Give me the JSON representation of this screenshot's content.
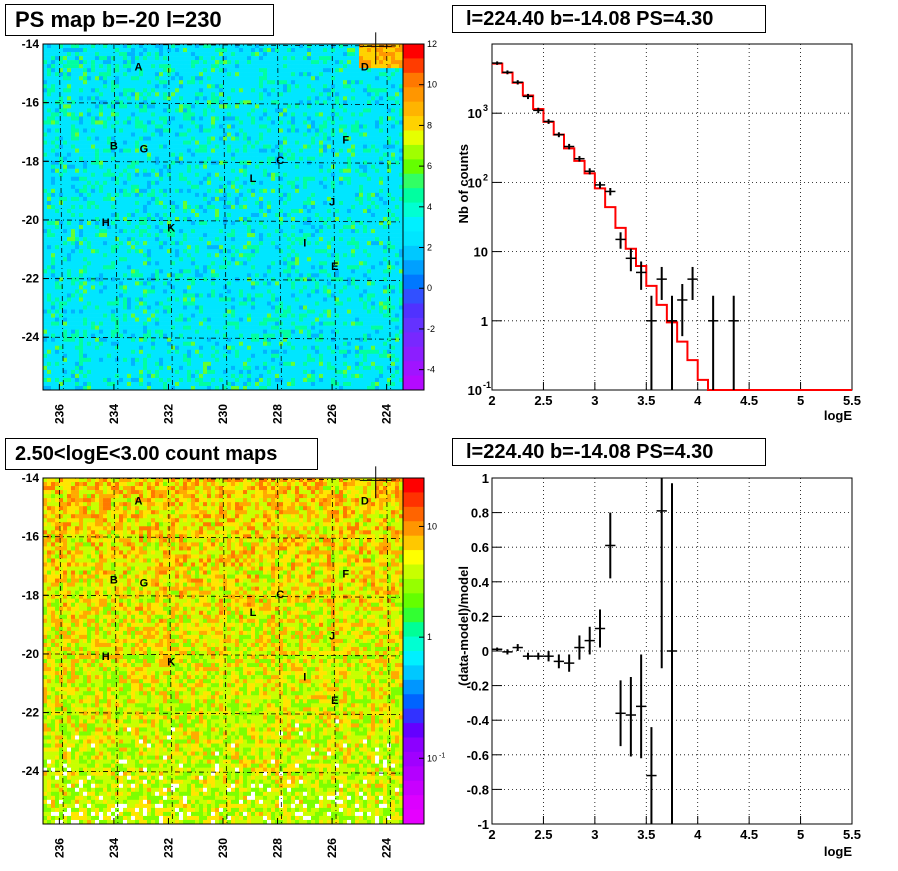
{
  "chart_data": [
    {
      "type": "heatmap",
      "title": "PS map b=-20 l=230",
      "xlabel": "",
      "ylabel": "",
      "x_ticks": [
        "236",
        "234",
        "232",
        "230",
        "228",
        "226",
        "224"
      ],
      "y_ticks": [
        "-14",
        "-16",
        "-18",
        "-20",
        "-22",
        "-24"
      ],
      "xlim": [
        236.6,
        223.4
      ],
      "ylim": [
        -25.8,
        -14
      ],
      "colorbar_ticks": [
        "12",
        "10",
        "8",
        "6",
        "4",
        "2",
        "0",
        "-2",
        "-4"
      ],
      "colorbar_range": [
        -5,
        12
      ],
      "colorbar_scale": "linear",
      "grid": true,
      "sources": [
        {
          "label": "A",
          "l": 233.1,
          "b": -14.9
        },
        {
          "label": "B",
          "l": 234.0,
          "b": -17.6
        },
        {
          "label": "G",
          "l": 232.9,
          "b": -17.7
        },
        {
          "label": "D",
          "l": 224.8,
          "b": -14.9
        },
        {
          "label": "F",
          "l": 225.5,
          "b": -17.4
        },
        {
          "label": "C",
          "l": 227.9,
          "b": -18.1
        },
        {
          "label": "L",
          "l": 228.9,
          "b": -18.7
        },
        {
          "label": "J",
          "l": 226.0,
          "b": -19.5
        },
        {
          "label": "H",
          "l": 234.3,
          "b": -20.2
        },
        {
          "label": "K",
          "l": 231.9,
          "b": -20.4
        },
        {
          "label": "I",
          "l": 227.0,
          "b": -20.9
        },
        {
          "label": "E",
          "l": 225.9,
          "b": -21.7
        }
      ],
      "marker": {
        "l": 224.4,
        "b": -14.08
      }
    },
    {
      "type": "line",
      "title": "l=224.40 b=-14.08 PS=4.30",
      "xlabel": "logE",
      "ylabel": "Nb of counts",
      "yscale": "log",
      "xlim": [
        2,
        5.5
      ],
      "ylim": [
        0.1,
        10000
      ],
      "x_ticks": [
        "2",
        "2.5",
        "3",
        "3.5",
        "4",
        "4.5",
        "5",
        "5.5"
      ],
      "y_ticks": [
        "10",
        "1",
        "10"
      ],
      "y_tick_exponents": [
        "-1",
        "",
        ""
      ],
      "y_ticks_pow": [
        {
          "base": "10",
          "exp": "-1"
        },
        {
          "base": "1",
          "exp": ""
        },
        {
          "base": "10",
          "exp": ""
        },
        {
          "base": "10",
          "exp": "2"
        },
        {
          "base": "10",
          "exp": "3"
        }
      ],
      "grid": true,
      "data_points": [
        {
          "x": 2.05,
          "y": 5300,
          "xerr": 0.05,
          "ylo": 5000,
          "yhi": 5600
        },
        {
          "x": 2.15,
          "y": 3900,
          "xerr": 0.05,
          "ylo": 3650,
          "yhi": 4150
        },
        {
          "x": 2.25,
          "y": 2800,
          "xerr": 0.05,
          "ylo": 2600,
          "yhi": 3000
        },
        {
          "x": 2.35,
          "y": 1750,
          "xerr": 0.05,
          "ylo": 1600,
          "yhi": 1900
        },
        {
          "x": 2.45,
          "y": 1100,
          "xerr": 0.05,
          "ylo": 1000,
          "yhi": 1200
        },
        {
          "x": 2.55,
          "y": 760,
          "xerr": 0.05,
          "ylo": 700,
          "yhi": 820
        },
        {
          "x": 2.65,
          "y": 490,
          "xerr": 0.05,
          "ylo": 450,
          "yhi": 530
        },
        {
          "x": 2.75,
          "y": 330,
          "xerr": 0.05,
          "ylo": 300,
          "yhi": 360
        },
        {
          "x": 2.85,
          "y": 220,
          "xerr": 0.05,
          "ylo": 200,
          "yhi": 240
        },
        {
          "x": 2.95,
          "y": 145,
          "xerr": 0.05,
          "ylo": 130,
          "yhi": 160
        },
        {
          "x": 3.05,
          "y": 92,
          "xerr": 0.05,
          "ylo": 82,
          "yhi": 102
        },
        {
          "x": 3.15,
          "y": 74,
          "xerr": 0.05,
          "ylo": 65,
          "yhi": 83
        },
        {
          "x": 3.25,
          "y": 15,
          "xerr": 0.05,
          "ylo": 11,
          "yhi": 19
        },
        {
          "x": 3.35,
          "y": 8,
          "xerr": 0.05,
          "ylo": 5.2,
          "yhi": 11
        },
        {
          "x": 3.45,
          "y": 5,
          "xerr": 0.05,
          "ylo": 2.8,
          "yhi": 7.2
        },
        {
          "x": 3.55,
          "y": 1,
          "xerr": 0.05,
          "ylo": 0.1,
          "yhi": 2.3
        },
        {
          "x": 3.65,
          "y": 4,
          "xerr": 0.05,
          "ylo": 2.0,
          "yhi": 6.0
        },
        {
          "x": 3.75,
          "y": 1,
          "xerr": 0.05,
          "ylo": 0.1,
          "yhi": 2.3
        },
        {
          "x": 3.85,
          "y": 2,
          "xerr": 0.05,
          "ylo": 0.6,
          "yhi": 3.4
        },
        {
          "x": 3.95,
          "y": 4,
          "xerr": 0.05,
          "ylo": 2.0,
          "yhi": 6.0
        },
        {
          "x": 4.15,
          "y": 1,
          "xerr": 0.05,
          "ylo": 0.1,
          "yhi": 2.3
        },
        {
          "x": 4.35,
          "y": 1,
          "xerr": 0.05,
          "ylo": 0.1,
          "yhi": 2.3
        }
      ],
      "model_step": {
        "edges": [
          2.0,
          2.1,
          2.2,
          2.3,
          2.4,
          2.5,
          2.6,
          2.7,
          2.8,
          2.9,
          3.0,
          3.1,
          3.2,
          3.3,
          3.4,
          3.5,
          3.6,
          3.7,
          3.8,
          3.9,
          4.0,
          4.1,
          5.5
        ],
        "values": [
          5200,
          3850,
          2750,
          1800,
          1150,
          750,
          490,
          310,
          205,
          135,
          82,
          44,
          22,
          11,
          6.2,
          3.2,
          1.7,
          0.95,
          0.5,
          0.27,
          0.14,
          0.1
        ]
      },
      "colors": {
        "data": "#000000",
        "model": "#ff0000"
      }
    },
    {
      "type": "heatmap",
      "title": "2.50<logE<3.00 count maps",
      "xlabel": "",
      "ylabel": "",
      "x_ticks": [
        "236",
        "234",
        "232",
        "230",
        "228",
        "226",
        "224"
      ],
      "y_ticks": [
        "-14",
        "-16",
        "-18",
        "-20",
        "-22",
        "-24"
      ],
      "xlim": [
        236.6,
        223.4
      ],
      "ylim": [
        -25.8,
        -14
      ],
      "colorbar_ticks": [
        "10",
        "1",
        "10"
      ],
      "colorbar_tick_exp": [
        "",
        "",
        "-1"
      ],
      "colorbar_scale": "log",
      "grid": true,
      "sources": [
        {
          "label": "A",
          "l": 233.1,
          "b": -14.9
        },
        {
          "label": "B",
          "l": 234.0,
          "b": -17.6
        },
        {
          "label": "G",
          "l": 232.9,
          "b": -17.7
        },
        {
          "label": "D",
          "l": 224.8,
          "b": -14.9
        },
        {
          "label": "F",
          "l": 225.5,
          "b": -17.4
        },
        {
          "label": "C",
          "l": 227.9,
          "b": -18.1
        },
        {
          "label": "L",
          "l": 228.9,
          "b": -18.7
        },
        {
          "label": "J",
          "l": 226.0,
          "b": -19.5
        },
        {
          "label": "H",
          "l": 234.3,
          "b": -20.2
        },
        {
          "label": "K",
          "l": 231.9,
          "b": -20.4
        },
        {
          "label": "I",
          "l": 227.0,
          "b": -20.9
        },
        {
          "label": "E",
          "l": 225.9,
          "b": -21.7
        }
      ],
      "marker": {
        "l": 224.4,
        "b": -14.08
      }
    },
    {
      "type": "scatter",
      "title": "l=224.40 b=-14.08 PS=4.30",
      "xlabel": "logE",
      "ylabel": "(data-model)/model",
      "xlim": [
        2,
        5.5
      ],
      "ylim": [
        -1,
        1
      ],
      "x_ticks": [
        "2",
        "2.5",
        "3",
        "3.5",
        "4",
        "4.5",
        "5",
        "5.5"
      ],
      "y_ticks": [
        "-1",
        "-0.8",
        "-0.6",
        "-0.4",
        "-0.2",
        "0",
        "0.2",
        "0.4",
        "0.6",
        "0.8",
        "1"
      ],
      "grid": true,
      "data_points": [
        {
          "x": 2.05,
          "y": 0.01,
          "xerr": 0.05,
          "ylo": 0.0,
          "yhi": 0.02
        },
        {
          "x": 2.15,
          "y": -0.005,
          "xerr": 0.05,
          "ylo": -0.02,
          "yhi": 0.01
        },
        {
          "x": 2.25,
          "y": 0.02,
          "xerr": 0.05,
          "ylo": 0.0,
          "yhi": 0.04
        },
        {
          "x": 2.35,
          "y": -0.03,
          "xerr": 0.05,
          "ylo": -0.05,
          "yhi": -0.01
        },
        {
          "x": 2.45,
          "y": -0.03,
          "xerr": 0.05,
          "ylo": -0.05,
          "yhi": -0.01
        },
        {
          "x": 2.55,
          "y": -0.03,
          "xerr": 0.05,
          "ylo": -0.06,
          "yhi": 0.0
        },
        {
          "x": 2.65,
          "y": -0.06,
          "xerr": 0.05,
          "ylo": -0.1,
          "yhi": -0.02
        },
        {
          "x": 2.75,
          "y": -0.07,
          "xerr": 0.05,
          "ylo": -0.12,
          "yhi": -0.02
        },
        {
          "x": 2.85,
          "y": 0.02,
          "xerr": 0.05,
          "ylo": -0.05,
          "yhi": 0.09
        },
        {
          "x": 2.95,
          "y": 0.06,
          "xerr": 0.05,
          "ylo": -0.02,
          "yhi": 0.14
        },
        {
          "x": 3.05,
          "y": 0.13,
          "xerr": 0.05,
          "ylo": 0.02,
          "yhi": 0.24
        },
        {
          "x": 3.15,
          "y": 0.61,
          "xerr": 0.05,
          "ylo": 0.42,
          "yhi": 0.8
        },
        {
          "x": 3.25,
          "y": -0.36,
          "xerr": 0.05,
          "ylo": -0.55,
          "yhi": -0.17
        },
        {
          "x": 3.35,
          "y": -0.37,
          "xerr": 0.05,
          "ylo": -0.61,
          "yhi": -0.15
        },
        {
          "x": 3.45,
          "y": -0.32,
          "xerr": 0.05,
          "ylo": -0.62,
          "yhi": -0.02
        },
        {
          "x": 3.55,
          "y": -0.72,
          "xerr": 0.05,
          "ylo": -1.0,
          "yhi": -0.44
        },
        {
          "x": 3.65,
          "y": 0.81,
          "xerr": 0.05,
          "ylo": -0.1,
          "yhi": 1.0
        },
        {
          "x": 3.75,
          "y": 0.0,
          "xerr": 0.05,
          "ylo": -1.0,
          "yhi": 0.97
        }
      ]
    }
  ],
  "colors": {
    "heatmap_bg": "#00e6ff",
    "grid": "#000000",
    "palette": [
      "#8a2be2",
      "#5a5aff",
      "#0096ff",
      "#00d2ff",
      "#00f0ff",
      "#00ff96",
      "#64ff00",
      "#c8ff00",
      "#ffff00",
      "#ffb400",
      "#ff6400",
      "#ff0000"
    ]
  }
}
